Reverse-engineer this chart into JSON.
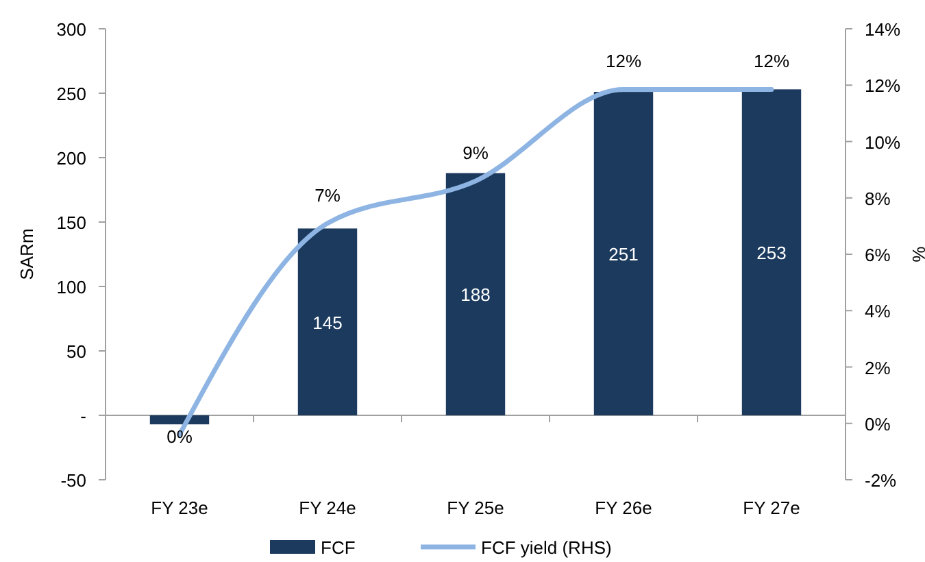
{
  "chart_data": {
    "type": "bar",
    "categories": [
      "FY 23e",
      "FY 24e",
      "FY 25e",
      "FY 26e",
      "FY 27e"
    ],
    "ylabel": "SARm",
    "y2label": "%",
    "ylim": [
      -50,
      300
    ],
    "yticks": [
      -50,
      {
        "value": 0,
        "label": "-"
      },
      50,
      100,
      150,
      200,
      250,
      300
    ],
    "y2lim": [
      -2,
      14
    ],
    "y2ticks": [
      {
        "value": -2,
        "label": "-2%"
      },
      {
        "value": 0,
        "label": "0%"
      },
      {
        "value": 2,
        "label": "2%"
      },
      {
        "value": 4,
        "label": "4%"
      },
      {
        "value": 6,
        "label": "6%"
      },
      {
        "value": 8,
        "label": "8%"
      },
      {
        "value": 10,
        "label": "10%"
      },
      {
        "value": 12,
        "label": "12%"
      },
      {
        "value": 14,
        "label": "14%"
      }
    ],
    "legend": "bottom",
    "series": [
      {
        "name": "FCF",
        "color": "#1b3a5e",
        "values": [
          -7,
          145,
          188,
          251,
          253
        ],
        "value_labels": [
          null,
          "145",
          "188",
          "251",
          "253"
        ]
      },
      {
        "name": "FCF yield (RHS)",
        "type": "line",
        "axis": "y2",
        "color": "#8db4e2",
        "values": [
          -0.4,
          7.1,
          8.6,
          11.85,
          11.85
        ],
        "value_labels": [
          "0%",
          "7%",
          "9%",
          "12%",
          "12%"
        ]
      }
    ]
  }
}
